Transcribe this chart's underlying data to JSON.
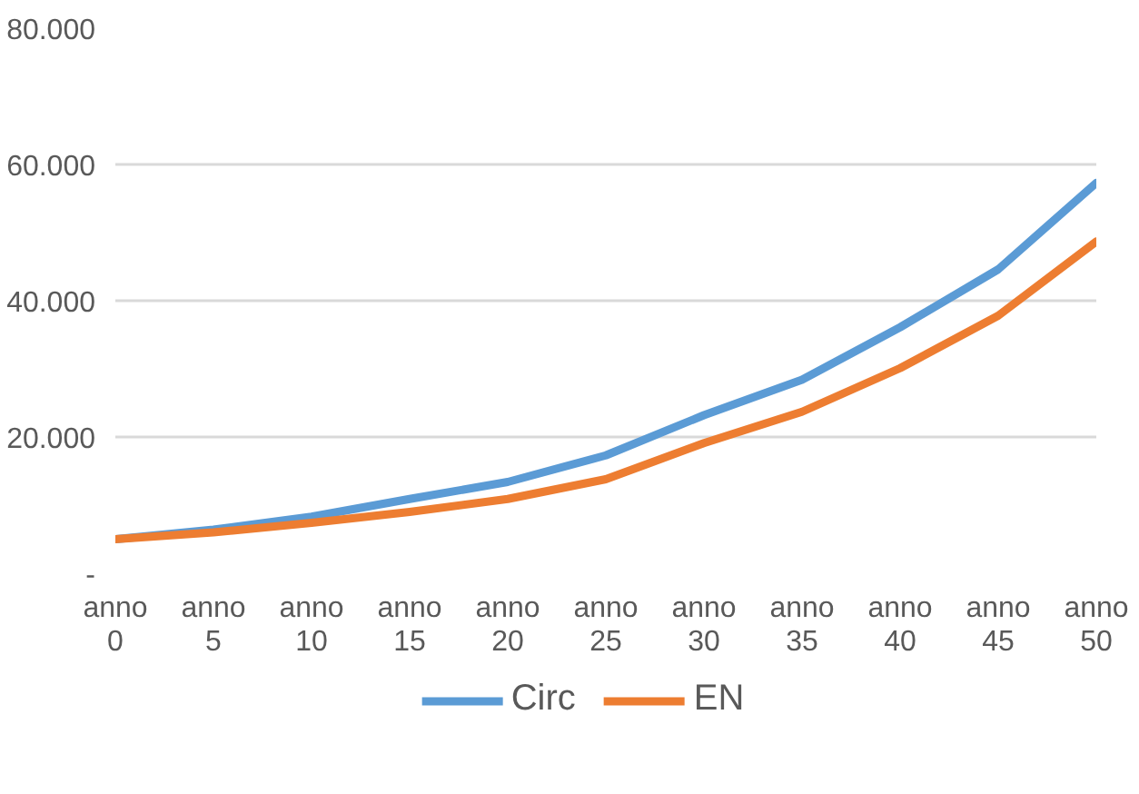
{
  "chart_data": {
    "type": "line",
    "categories": [
      "anno 0",
      "anno 5",
      "anno 10",
      "anno 15",
      "anno 20",
      "anno 25",
      "anno 30",
      "anno 35",
      "anno 40",
      "anno 45",
      "anno 50"
    ],
    "ylim": [
      0,
      80000
    ],
    "yticks": [
      {
        "value": 0,
        "label": "-"
      },
      {
        "value": 20000,
        "label": "20.000"
      },
      {
        "value": 40000,
        "label": "40.000"
      },
      {
        "value": 60000,
        "label": "60.000"
      },
      {
        "value": 80000,
        "label": "80.000"
      }
    ],
    "series": [
      {
        "name": "Circ",
        "color": "#5b9bd5",
        "values": [
          5000,
          6400,
          8300,
          10900,
          13400,
          17300,
          23200,
          28400,
          36100,
          44600,
          57300
        ]
      },
      {
        "name": "EN",
        "color": "#ed7d31",
        "values": [
          5000,
          6000,
          7400,
          9000,
          10900,
          13800,
          19100,
          23700,
          30100,
          37800,
          48700
        ]
      }
    ],
    "grid": "y",
    "legend": "bottom",
    "marker": "none",
    "line_style": "solid"
  }
}
